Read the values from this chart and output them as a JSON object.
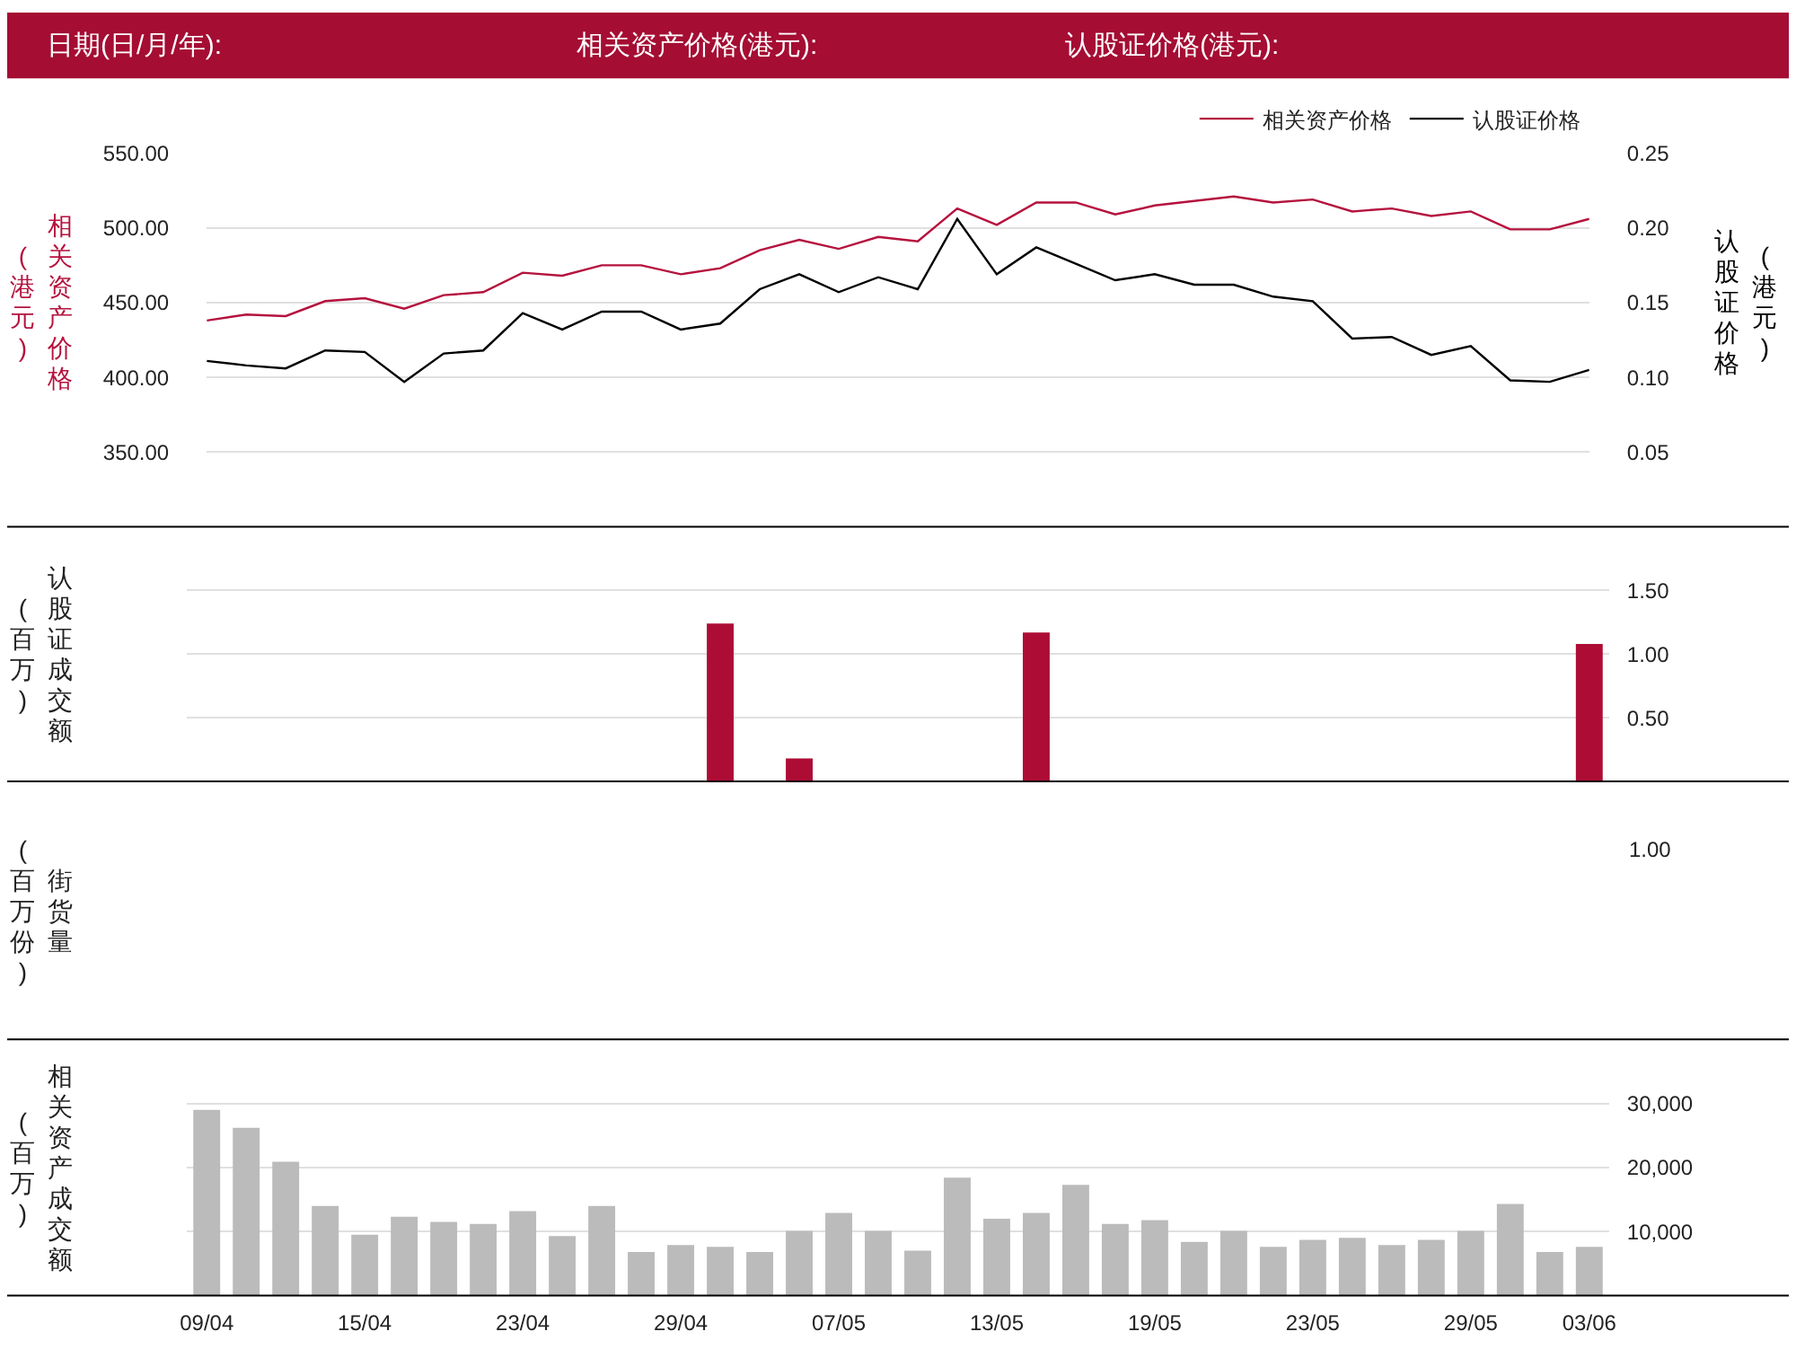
{
  "chart_data": [
    {
      "type": "other",
      "color": "#a50d33",
      "annotations": [
        "日期(日/月/年):",
        "相关资产价格(港元):",
        "认股证价格(港元):"
      ]
    },
    {
      "type": "line",
      "categories": [
        null,
        null,
        null,
        null,
        null,
        null,
        null,
        null,
        null,
        null,
        null,
        null,
        null,
        null,
        null,
        null,
        null,
        null,
        null,
        null,
        null,
        null,
        null,
        null,
        null,
        null,
        null,
        null,
        null,
        null,
        null,
        null,
        null,
        null,
        null,
        null
      ],
      "ylabel": "相关资产价格(港元)",
      "y2label": "认股证价格(港元)",
      "series": [
        {
          "name": "相关资产价格",
          "color": "#b5123e",
          "values": [
            438,
            442,
            441,
            451,
            453,
            446,
            455,
            457,
            470,
            468,
            475,
            475,
            469,
            473,
            485,
            492,
            486,
            494,
            491,
            513,
            502,
            517,
            517,
            509,
            515,
            518,
            521,
            517,
            519,
            511,
            513,
            508,
            511,
            499,
            499,
            506
          ]
        },
        {
          "name": "认股证价格",
          "color": "#000000",
          "axis": "y2",
          "values": [
            0.111,
            0.108,
            0.106,
            0.118,
            0.117,
            0.097,
            0.116,
            0.118,
            0.143,
            0.132,
            0.144,
            0.144,
            0.132,
            0.136,
            0.159,
            0.169,
            0.157,
            0.167,
            0.159,
            0.206,
            0.169,
            0.187,
            0.176,
            0.165,
            0.169,
            0.162,
            0.162,
            0.154,
            0.151,
            0.126,
            0.127,
            0.115,
            0.121,
            0.098,
            0.097,
            0.105
          ]
        }
      ],
      "ylim": [
        300,
        550
      ],
      "yticks": [
        {
          "value": 350,
          "label": "350.00"
        },
        {
          "value": 400,
          "label": "400.00"
        },
        {
          "value": 450,
          "label": "450.00"
        },
        {
          "value": 500,
          "label": "500.00"
        },
        {
          "value": 550,
          "label": "550.00"
        }
      ],
      "y2lim": [
        0,
        0.25
      ],
      "y2ticks": [
        0.05,
        {
          "value": 0.1,
          "label": "0.10"
        },
        0.15,
        {
          "value": 0.2,
          "label": "0.20"
        },
        0.25
      ],
      "grid": "y",
      "legend": "top right",
      "line_style": "solid"
    },
    {
      "type": "bar",
      "categories": [
        null,
        null,
        null,
        null,
        null,
        null,
        null,
        null,
        null,
        null,
        null,
        null,
        null,
        null,
        null,
        null,
        null,
        null,
        null,
        null,
        null,
        null,
        null,
        null,
        null,
        null,
        null,
        null,
        null,
        null,
        null,
        null,
        null,
        null,
        null,
        null
      ],
      "ylabel": "认股证成交额(百万)",
      "color": "#ad0d35",
      "values": [
        0,
        0,
        0,
        0,
        0,
        0,
        0,
        0,
        0,
        0,
        0,
        0,
        0,
        1.24,
        0,
        0.18,
        0,
        0,
        0,
        0,
        0,
        1.17,
        0,
        0,
        0,
        0,
        0,
        0,
        0,
        0,
        0,
        0,
        0,
        0,
        0,
        1.08
      ],
      "ylim": [
        0,
        2
      ],
      "yticks": [
        {
          "value": 0.5,
          "label": "0.50"
        },
        {
          "value": 1,
          "label": "1.00"
        },
        {
          "value": 1.5,
          "label": "1.50"
        }
      ],
      "grid": "y"
    },
    {
      "type": "other",
      "ylabel": "街货量(百万份)",
      "annotations": [
        "1.00"
      ]
    },
    {
      "type": "bar",
      "categories": [
        "09/04",
        null,
        null,
        null,
        "15/04",
        null,
        null,
        null,
        "23/04",
        null,
        null,
        null,
        "29/04",
        null,
        null,
        null,
        "07/05",
        null,
        null,
        null,
        "13/05",
        null,
        null,
        null,
        "19/05",
        null,
        null,
        null,
        "23/05",
        null,
        null,
        null,
        "29/05",
        null,
        null,
        "03/06"
      ],
      "ylabel": "相关资产成交额(百万)",
      "color": "#bbbbbb",
      "values": [
        29000,
        26200,
        20900,
        14000,
        9500,
        12300,
        11500,
        11200,
        13200,
        9300,
        14000,
        6800,
        7900,
        7600,
        6800,
        10100,
        12900,
        10100,
        7000,
        18400,
        12000,
        12900,
        17300,
        11200,
        11800,
        8400,
        10100,
        7600,
        8700,
        9000,
        7900,
        8700,
        10100,
        14300,
        6800,
        7600
      ],
      "ylim": [
        0,
        40000
      ],
      "yticks": [
        {
          "value": 10000,
          "label": "10,000"
        },
        {
          "value": 20000,
          "label": "20,000"
        },
        {
          "value": 30000,
          "label": "30,000"
        }
      ],
      "grid": "y"
    }
  ]
}
